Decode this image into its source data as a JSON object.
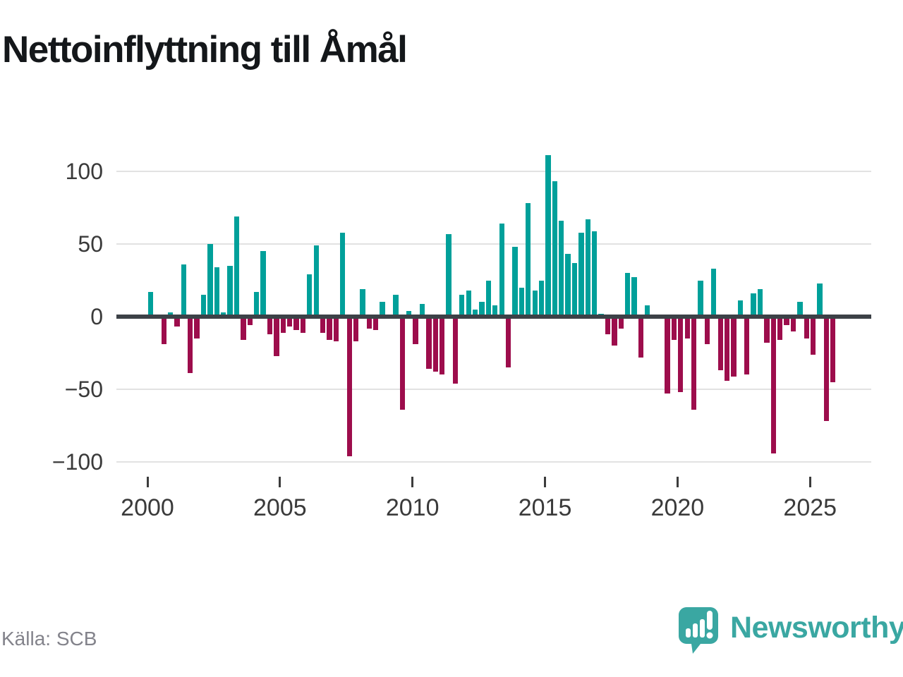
{
  "title": "Nettoinflyttning till Åmål",
  "source": "Källa: SCB",
  "logo": {
    "text": "Newsworthy",
    "icon": "newsworthy-speech-bubble-chart-icon"
  },
  "colors": {
    "positive": "#00a09a",
    "negative": "#9d0d4c",
    "zero_line": "#3c4147",
    "gridline": "#e2e2e2",
    "axis_text": "#3a3a3a",
    "source_text": "#83838b",
    "logo_teal": "#3aa7a2"
  },
  "chart_data": {
    "type": "bar",
    "title": "Nettoinflyttning till Åmål",
    "xlabel": "",
    "ylabel": "",
    "frequency": "quarterly",
    "start_year": 2000,
    "start_quarter": 1,
    "ylim": [
      -115,
      122
    ],
    "grid": "horizontal",
    "y_ticks": [
      100,
      50,
      0,
      -50,
      -100
    ],
    "y_tick_labels": [
      "100",
      "50",
      "0",
      "−50",
      "−100"
    ],
    "x_tick_years": [
      2000,
      2005,
      2010,
      2015,
      2020,
      2025
    ],
    "x_tick_labels": [
      "2000",
      "2005",
      "2010",
      "2015",
      "2020",
      "2025"
    ],
    "series": [
      {
        "name": "Nettoinflyttning",
        "values": [
          17,
          0,
          -19,
          3,
          -7,
          36,
          -39,
          -15,
          15,
          50,
          34,
          3,
          35,
          69,
          -16,
          -6,
          17,
          45,
          -12,
          -27,
          -11,
          -7,
          -9,
          -11,
          29,
          49,
          -11,
          -16,
          -17,
          58,
          -96,
          -17,
          19,
          -8,
          -9,
          10,
          0,
          15,
          -64,
          4,
          -19,
          9,
          -36,
          -38,
          -40,
          57,
          -46,
          15,
          18,
          5,
          10,
          25,
          8,
          64,
          -35,
          48,
          20,
          78,
          18,
          25,
          111,
          93,
          66,
          43,
          37,
          58,
          67,
          59,
          2,
          -12,
          -20,
          -8,
          30,
          27,
          -28,
          8,
          0,
          0,
          -53,
          -16,
          -52,
          -15,
          -64,
          25,
          -19,
          33,
          -37,
          -44,
          -41,
          11,
          -40,
          16,
          19,
          -18,
          -94,
          -16,
          -6,
          -10,
          10,
          -15,
          -26,
          23,
          -72,
          -45
        ]
      }
    ]
  }
}
